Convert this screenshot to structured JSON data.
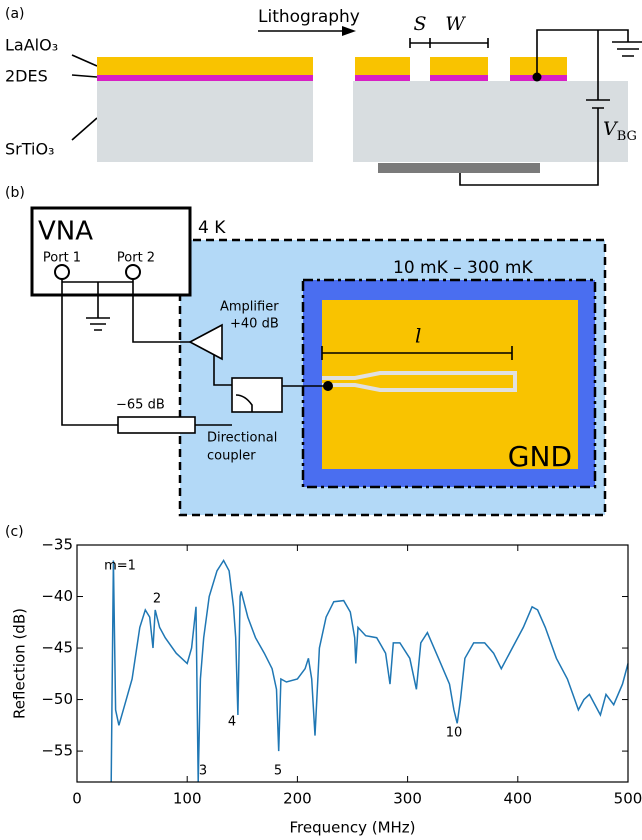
{
  "panel_a": {
    "label": "(a)",
    "process": "Lithography",
    "gap": "S",
    "width": "W",
    "layers": [
      "LaAlO₃",
      "2DES",
      "SrTiO₃"
    ],
    "gate_voltage": {
      "symbol": "V",
      "subscript": "BG"
    }
  },
  "panel_b": {
    "label": "(b)",
    "instrument": "VNA",
    "ports": [
      "Port 1",
      "Port 2"
    ],
    "stage_4k": "4 K",
    "stage_mk": "10 mK – 300 mK",
    "amplifier": [
      "Amplifier",
      "+40 dB"
    ],
    "attenuator": "−65 dB",
    "coupler": [
      "Directional",
      "coupler"
    ],
    "length": "l",
    "ground": "GND"
  },
  "panel_c": {
    "label": "(c)"
  },
  "chart_data": {
    "type": "line",
    "color": "#1f77b4",
    "xlabel": "Frequency (MHz)",
    "ylabel": "Reflection (dB)",
    "x": [
      31,
      33,
      35,
      38,
      42,
      50,
      57,
      62,
      66,
      69,
      71,
      75,
      80,
      90,
      100,
      104,
      106,
      108,
      110,
      112,
      115,
      120,
      127,
      133,
      138,
      142,
      144,
      146,
      148,
      149,
      155,
      162,
      170,
      177,
      181,
      183,
      185,
      190,
      200,
      207,
      210,
      213,
      216,
      220,
      226,
      233,
      242,
      248,
      252,
      253,
      255,
      262,
      272,
      280,
      284,
      287,
      293,
      302,
      308,
      312,
      318,
      328,
      338,
      342,
      345,
      348,
      352,
      360,
      370,
      378,
      385,
      395,
      405,
      413,
      418,
      425,
      435,
      445,
      450,
      455,
      460,
      465,
      475,
      480,
      487,
      495,
      500
    ],
    "values": [
      -58,
      -36.5,
      -51,
      -52.5,
      -51,
      -48,
      -43,
      -41.3,
      -42,
      -45,
      -41.3,
      -43,
      -44,
      -45.5,
      -46.5,
      -45,
      -43,
      -41,
      -58,
      -48,
      -44,
      -40,
      -37.5,
      -36.5,
      -37.5,
      -41,
      -44,
      -51.5,
      -40,
      -39.5,
      -42,
      -44,
      -45.5,
      -47,
      -49,
      -55,
      -48,
      -48.3,
      -48,
      -47,
      -46,
      -48,
      -53.5,
      -45,
      -42,
      -40.5,
      -40.4,
      -41.5,
      -44,
      -46.5,
      -43,
      -43.8,
      -44,
      -45.5,
      -48.5,
      -44.5,
      -44.5,
      -46,
      -49,
      -44.5,
      -43.5,
      -46,
      -48.5,
      -51,
      -52.3,
      -50,
      -46,
      -44.5,
      -44.5,
      -45.5,
      -47,
      -45,
      -43,
      -41,
      -41.3,
      -43,
      -46,
      -48,
      -49.5,
      -51,
      -50,
      -49.5,
      -51.5,
      -49.5,
      -50.5,
      -48.5,
      -46.5
    ],
    "xlim": [
      0,
      500
    ],
    "ylim": [
      -58,
      -35
    ],
    "xticks": [
      0,
      100,
      200,
      300,
      400,
      500
    ],
    "yticks": [
      {
        "value": -35,
        "label": "−35"
      },
      {
        "value": -40,
        "label": "−40"
      },
      {
        "value": -45,
        "label": "−45"
      },
      {
        "value": -50,
        "label": "−50"
      },
      {
        "value": -55,
        "label": "−55"
      }
    ],
    "annotations": [
      "m=1",
      "2",
      "3",
      "4",
      "5",
      "10"
    ]
  }
}
